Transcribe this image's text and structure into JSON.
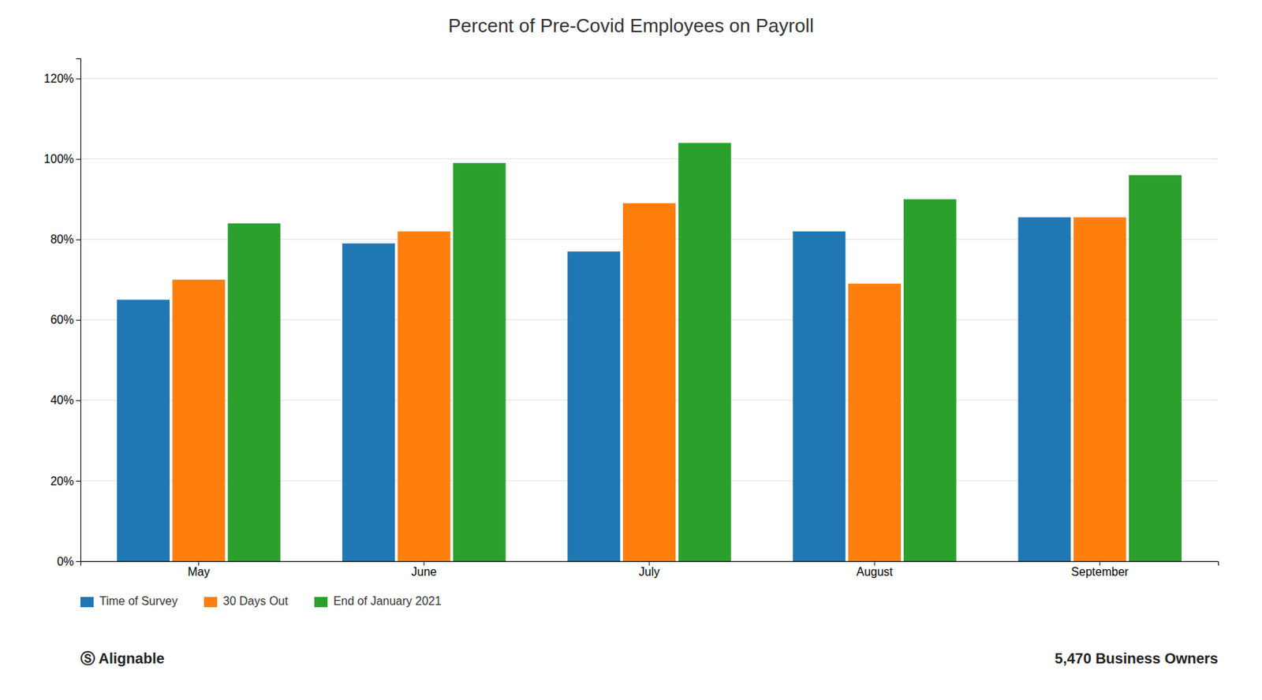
{
  "chart_data": {
    "type": "bar",
    "title": "Percent of Pre-Covid Employees on Payroll",
    "categories": [
      "May",
      "June",
      "July",
      "August",
      "September"
    ],
    "series": [
      {
        "name": "Time of Survey",
        "values": [
          0.65,
          0.79,
          0.77,
          0.82,
          0.855
        ]
      },
      {
        "name": "30 Days Out",
        "values": [
          0.7,
          0.82,
          0.89,
          0.69,
          0.855
        ]
      },
      {
        "name": "End of January 2021",
        "values": [
          0.84,
          0.99,
          1.04,
          0.9,
          0.96
        ]
      }
    ],
    "ylim": [
      0,
      1.25
    ],
    "yticks": [
      {
        "value": 0,
        "label": "0%"
      },
      {
        "value": 0.2,
        "label": "20%"
      },
      {
        "value": 0.4,
        "label": "40%"
      },
      {
        "value": 0.6,
        "label": "60%"
      },
      {
        "value": 0.8,
        "label": "80%"
      },
      {
        "value": 1.0,
        "label": "100%"
      },
      {
        "value": 1.2,
        "label": "120%"
      }
    ],
    "grid": true,
    "legend": "bottom",
    "annotations": [
      "Ⓢ Alignable",
      "5,470 Business Owners"
    ]
  }
}
